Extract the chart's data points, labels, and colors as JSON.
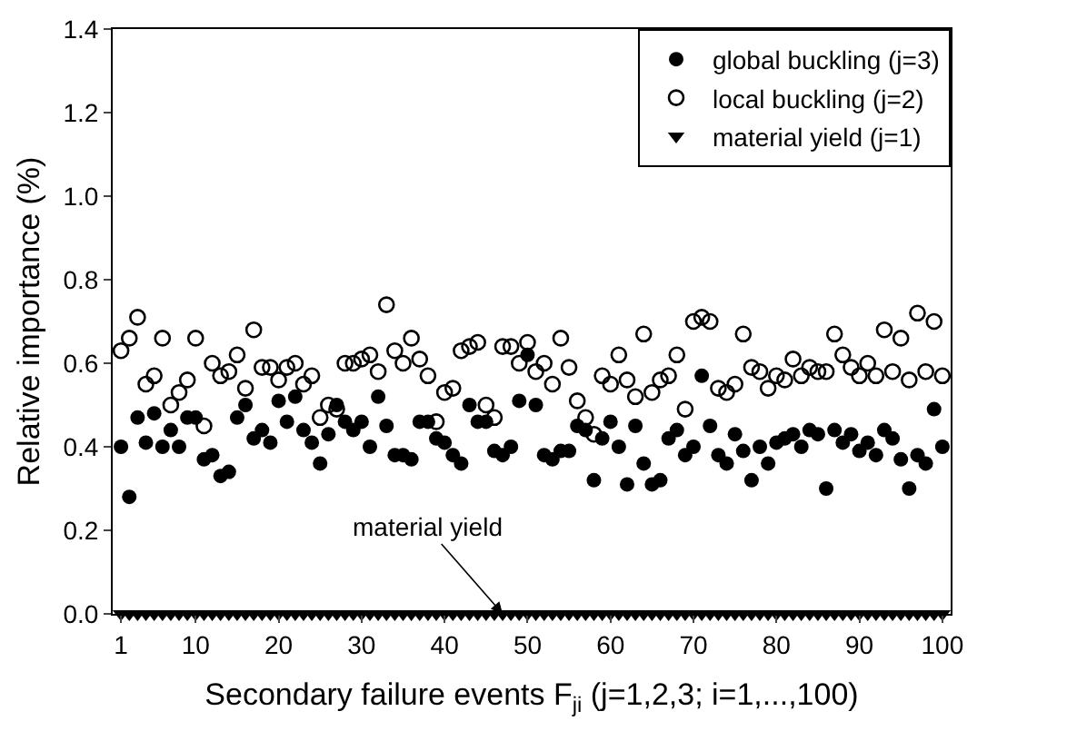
{
  "chart_data": {
    "type": "scatter",
    "xlabel": "Secondary failure events F$_{ji}$ (j=1,2,3; i=1,...,100)",
    "ylabel": "Relative importance (%)",
    "x": [
      1,
      2,
      3,
      4,
      5,
      6,
      7,
      8,
      9,
      10,
      11,
      12,
      13,
      14,
      15,
      16,
      17,
      18,
      19,
      20,
      21,
      22,
      23,
      24,
      25,
      26,
      27,
      28,
      29,
      30,
      31,
      32,
      33,
      34,
      35,
      36,
      37,
      38,
      39,
      40,
      41,
      42,
      43,
      44,
      45,
      46,
      47,
      48,
      49,
      50,
      51,
      52,
      53,
      54,
      55,
      56,
      57,
      58,
      59,
      60,
      61,
      62,
      63,
      64,
      65,
      66,
      67,
      68,
      69,
      70,
      71,
      72,
      73,
      74,
      75,
      76,
      77,
      78,
      79,
      80,
      81,
      82,
      83,
      84,
      85,
      86,
      87,
      88,
      89,
      90,
      91,
      92,
      93,
      94,
      95,
      96,
      97,
      98,
      99,
      100
    ],
    "series": [
      {
        "name": "global buckling (j=3)",
        "color": "#000000",
        "marker": "circle",
        "values": [
          0.4,
          0.28,
          0.47,
          0.41,
          0.48,
          0.4,
          0.44,
          0.4,
          0.47,
          0.47,
          0.37,
          0.38,
          0.33,
          0.34,
          0.47,
          0.5,
          0.42,
          0.44,
          0.41,
          0.51,
          0.46,
          0.52,
          0.44,
          0.41,
          0.36,
          0.43,
          0.5,
          0.46,
          0.44,
          0.46,
          0.4,
          0.52,
          0.45,
          0.38,
          0.38,
          0.37,
          0.46,
          0.46,
          0.42,
          0.41,
          0.38,
          0.36,
          0.5,
          0.46,
          0.46,
          0.39,
          0.38,
          0.4,
          0.51,
          0.62,
          0.5,
          0.38,
          0.37,
          0.39,
          0.39,
          0.45,
          0.44,
          0.32,
          0.42,
          0.46,
          0.4,
          0.31,
          0.45,
          0.36,
          0.31,
          0.32,
          0.42,
          0.44,
          0.38,
          0.4,
          0.57,
          0.45,
          0.38,
          0.36,
          0.43,
          0.39,
          0.32,
          0.4,
          0.36,
          0.41,
          0.42,
          0.43,
          0.4,
          0.44,
          0.43,
          0.3,
          0.44,
          0.41,
          0.43,
          0.39,
          0.41,
          0.38,
          0.44,
          0.42,
          0.37,
          0.3,
          0.38,
          0.36,
          0.49,
          0.4
        ]
      },
      {
        "name": "local buckling (j=2)",
        "color": "#000000",
        "marker": "circle-open",
        "values": [
          0.63,
          0.66,
          0.71,
          0.55,
          0.57,
          0.66,
          0.5,
          0.53,
          0.56,
          0.66,
          0.45,
          0.6,
          0.57,
          0.58,
          0.62,
          0.54,
          0.68,
          0.59,
          0.59,
          0.56,
          0.59,
          0.6,
          0.55,
          0.57,
          0.47,
          0.5,
          0.49,
          0.6,
          0.6,
          0.61,
          0.62,
          0.58,
          0.74,
          0.63,
          0.6,
          0.66,
          0.61,
          0.57,
          0.46,
          0.53,
          0.54,
          0.63,
          0.64,
          0.65,
          0.5,
          0.47,
          0.64,
          0.64,
          0.6,
          0.65,
          0.58,
          0.6,
          0.55,
          0.66,
          0.59,
          0.51,
          0.47,
          0.43,
          0.57,
          0.55,
          0.62,
          0.56,
          0.52,
          0.67,
          0.53,
          0.56,
          0.57,
          0.62,
          0.49,
          0.7,
          0.71,
          0.7,
          0.54,
          0.53,
          0.55,
          0.67,
          0.59,
          0.58,
          0.54,
          0.57,
          0.56,
          0.61,
          0.57,
          0.59,
          0.58,
          0.58,
          0.67,
          0.62,
          0.59,
          0.57,
          0.6,
          0.57,
          0.68,
          0.58,
          0.66,
          0.56,
          0.72,
          0.58,
          0.7,
          0.57
        ]
      },
      {
        "name": "material yield (j=1)",
        "color": "#000000",
        "marker": "triangle-down",
        "values": [
          0,
          0,
          0,
          0,
          0,
          0,
          0,
          0,
          0,
          0,
          0,
          0,
          0,
          0,
          0,
          0,
          0,
          0,
          0,
          0,
          0,
          0,
          0,
          0,
          0,
          0,
          0,
          0,
          0,
          0,
          0,
          0,
          0,
          0,
          0,
          0,
          0,
          0,
          0,
          0,
          0,
          0,
          0,
          0,
          0,
          0,
          0,
          0,
          0,
          0,
          0,
          0,
          0,
          0,
          0,
          0,
          0,
          0,
          0,
          0,
          0,
          0,
          0,
          0,
          0,
          0,
          0,
          0,
          0,
          0,
          0,
          0,
          0,
          0,
          0,
          0,
          0,
          0,
          0,
          0,
          0,
          0,
          0,
          0,
          0,
          0,
          0,
          0,
          0,
          0,
          0,
          0,
          0,
          0,
          0,
          0,
          0,
          0,
          0,
          0
        ]
      }
    ],
    "xlim": [
      0,
      101
    ],
    "xticks": [
      1,
      10,
      20,
      30,
      40,
      50,
      60,
      70,
      80,
      90,
      100
    ],
    "ylim": [
      0,
      1.4
    ],
    "yticks": [
      {
        "value": 0,
        "label": "0.0"
      },
      {
        "value": 0.2,
        "label": "0.2"
      },
      {
        "value": 0.4,
        "label": "0.4"
      },
      {
        "value": 0.6,
        "label": "0.6"
      },
      {
        "value": 0.8,
        "label": "0.8"
      },
      {
        "value": 1,
        "label": "1.0"
      },
      {
        "value": 1.2,
        "label": "1.2"
      },
      {
        "value": 1.4,
        "label": "1.4"
      }
    ],
    "annotations": [
      {
        "text": "material yield",
        "x": 47,
        "y": 0
      }
    ],
    "grid": false,
    "legend": "top right"
  }
}
